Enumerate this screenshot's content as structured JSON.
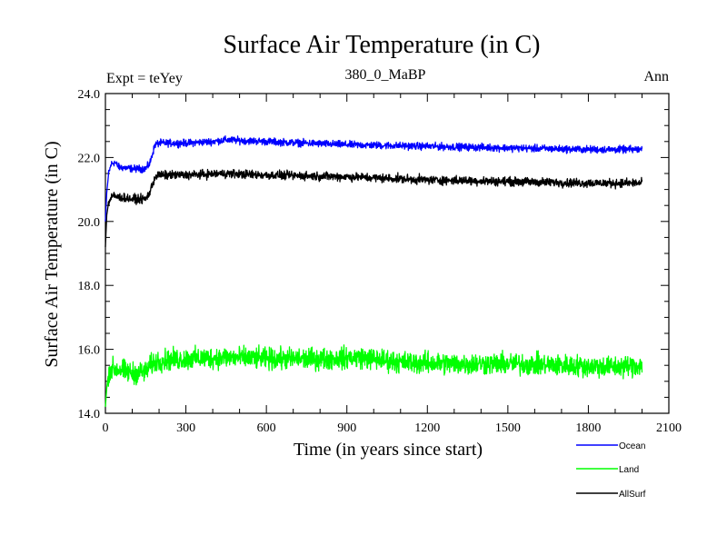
{
  "chart_data": {
    "type": "line",
    "title": "Surface Air Temperature (in C)",
    "subtitle": "380_0_MaBP",
    "left_note": "Expt = teYey",
    "right_note": "Ann",
    "xlabel": "Time (in years since start)",
    "ylabel": "Surface Air Temperature (in C)",
    "xlim": [
      0,
      2100
    ],
    "ylim": [
      14.0,
      24.0
    ],
    "x_ticks": [
      0,
      300,
      600,
      900,
      1200,
      1500,
      1800,
      2100
    ],
    "x_tick_labels": [
      "0",
      "300",
      "600",
      "900",
      "1200",
      "1500",
      "1800",
      "2100"
    ],
    "y_ticks": [
      14,
      16,
      18,
      20,
      22,
      24
    ],
    "y_tick_labels": [
      "14.0",
      "16.0",
      "18.0",
      "20.0",
      "22.0",
      "24.0"
    ],
    "legend_position": "below-right",
    "series": [
      {
        "name": "Ocean",
        "color": "#0000ff",
        "noise": 0.05,
        "points": [
          [
            0,
            20.0
          ],
          [
            5,
            20.9
          ],
          [
            12,
            21.5
          ],
          [
            22,
            21.8
          ],
          [
            35,
            21.85
          ],
          [
            50,
            21.7
          ],
          [
            100,
            21.65
          ],
          [
            150,
            21.65
          ],
          [
            165,
            21.8
          ],
          [
            185,
            22.4
          ],
          [
            200,
            22.45
          ],
          [
            300,
            22.45
          ],
          [
            400,
            22.5
          ],
          [
            450,
            22.55
          ],
          [
            600,
            22.5
          ],
          [
            900,
            22.4
          ],
          [
            1200,
            22.35
          ],
          [
            1500,
            22.3
          ],
          [
            1800,
            22.25
          ],
          [
            2000,
            22.25
          ]
        ]
      },
      {
        "name": "Land",
        "color": "#00ff00",
        "noise": 0.15,
        "points": [
          [
            0,
            14.2
          ],
          [
            5,
            14.8
          ],
          [
            12,
            15.3
          ],
          [
            25,
            15.4
          ],
          [
            60,
            15.35
          ],
          [
            100,
            15.25
          ],
          [
            150,
            15.3
          ],
          [
            175,
            15.55
          ],
          [
            200,
            15.65
          ],
          [
            300,
            15.7
          ],
          [
            450,
            15.75
          ],
          [
            600,
            15.7
          ],
          [
            800,
            15.7
          ],
          [
            950,
            15.75
          ],
          [
            1100,
            15.6
          ],
          [
            1300,
            15.55
          ],
          [
            1500,
            15.55
          ],
          [
            1700,
            15.5
          ],
          [
            1900,
            15.45
          ],
          [
            2000,
            15.5
          ]
        ]
      },
      {
        "name": "AllSurf",
        "color": "#000000",
        "noise": 0.06,
        "points": [
          [
            0,
            19.2
          ],
          [
            5,
            20.2
          ],
          [
            12,
            20.6
          ],
          [
            25,
            20.8
          ],
          [
            60,
            20.75
          ],
          [
            100,
            20.7
          ],
          [
            150,
            20.7
          ],
          [
            165,
            20.9
          ],
          [
            185,
            21.4
          ],
          [
            200,
            21.45
          ],
          [
            300,
            21.45
          ],
          [
            450,
            21.5
          ],
          [
            600,
            21.45
          ],
          [
            900,
            21.4
          ],
          [
            1200,
            21.3
          ],
          [
            1500,
            21.25
          ],
          [
            1800,
            21.2
          ],
          [
            2000,
            21.2
          ]
        ]
      }
    ]
  }
}
